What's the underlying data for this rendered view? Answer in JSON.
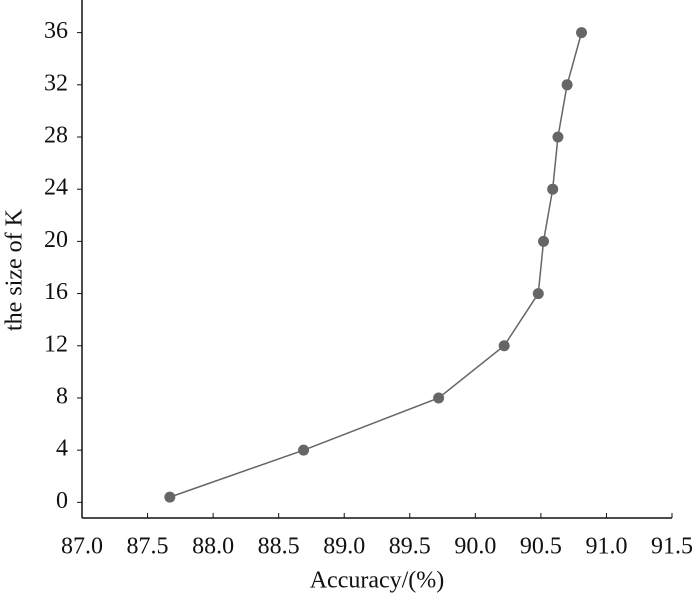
{
  "chart_data": {
    "type": "line",
    "xlabel": "Accuracy/(%)",
    "ylabel": "the size of K",
    "x": [
      87.67,
      88.69,
      89.72,
      90.22,
      90.48,
      90.52,
      90.59,
      90.63,
      90.7,
      90.81
    ],
    "series": [
      {
        "color": "#666666",
        "values": [
          0.4,
          4,
          8,
          12,
          16,
          20,
          24,
          28,
          32,
          36
        ]
      }
    ],
    "xlim": [
      87.0,
      91.5
    ],
    "xticks": [
      {
        "value": 87.0,
        "label": "87.0"
      },
      {
        "value": 87.5,
        "label": "87.5"
      },
      {
        "value": 88.0,
        "label": "88.0"
      },
      {
        "value": 88.5,
        "label": "88.5"
      },
      {
        "value": 89.0,
        "label": "89.0"
      },
      {
        "value": 89.5,
        "label": "89.5"
      },
      {
        "value": 90.0,
        "label": "90.0"
      },
      {
        "value": 90.5,
        "label": "90.5"
      },
      {
        "value": 91.0,
        "label": "91.0"
      },
      {
        "value": 91.5,
        "label": "91.5"
      }
    ],
    "ylim": [
      -1.2,
      38.5
    ],
    "yticks": [
      0,
      4,
      8,
      12,
      16,
      20,
      24,
      28,
      32,
      36
    ],
    "grid": false
  }
}
